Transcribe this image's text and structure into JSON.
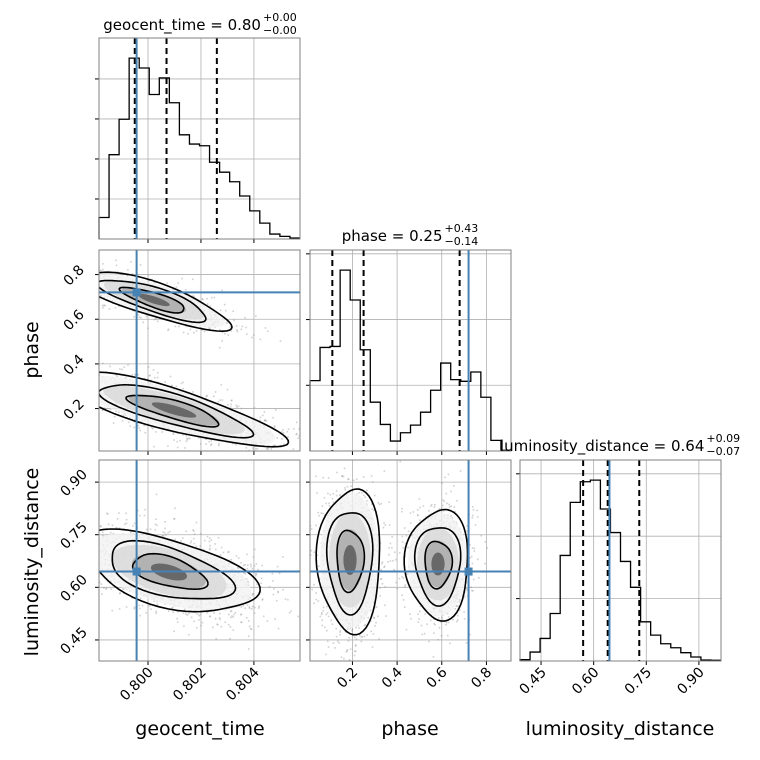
{
  "chart_data": {
    "type": "corner",
    "parameters": [
      "geocent_time",
      "phase",
      "luminosity_distance"
    ],
    "axis_labels": [
      "geocent_time",
      "phase",
      "luminosity_distance"
    ],
    "ranges": {
      "geocent_time": [
        0.79815,
        0.80574
      ],
      "phase": [
        0.01,
        0.91
      ],
      "luminosity_distance": [
        0.39,
        0.963
      ]
    },
    "ticks": {
      "geocent_time": [
        "0.800",
        "0.802",
        "0.804"
      ],
      "phase": [
        "0.2",
        "0.4",
        "0.6",
        "0.8"
      ],
      "luminosity_distance": [
        "0.45",
        "0.60",
        "0.75",
        "0.90"
      ]
    },
    "titles": [
      {
        "name": "geocent_time",
        "median": "0.80",
        "plus": "+0.00",
        "minus": "−0.00"
      },
      {
        "name": "phase",
        "median": "0.25",
        "plus": "+0.43",
        "minus": "−0.14"
      },
      {
        "name": "luminosity_distance",
        "median": "0.64",
        "plus": "+0.09",
        "minus": "−0.07"
      }
    ],
    "quantiles": {
      "geocent_time": [
        0.7995,
        0.8007,
        0.8026
      ],
      "phase": [
        0.11,
        0.25,
        0.68
      ],
      "luminosity_distance": [
        0.57,
        0.64,
        0.73
      ]
    },
    "truths": {
      "geocent_time": 0.79957,
      "phase": 0.72,
      "luminosity_distance": 0.645
    },
    "histograms": {
      "geocent_time": {
        "counts": [
          65,
          255,
          362,
          547,
          517,
          437,
          487,
          412,
          315,
          287,
          282,
          232,
          202,
          173,
          130,
          85,
          48,
          15,
          8,
          3
        ],
        "yticks": [
          121,
          242,
          363,
          484
        ]
      },
      "phase": {
        "counts": [
          212,
          312,
          315,
          545,
          455,
          305,
          147,
          80,
          30,
          55,
          78,
          117,
          183,
          265,
          215,
          210,
          238,
          162,
          32,
          2
        ],
        "yticks": [
          198,
          396,
          594
        ]
      },
      "luminosity_distance": {
        "counts": [
          4,
          27,
          68,
          143,
          318,
          478,
          540,
          545,
          458,
          387,
          300,
          222,
          118,
          78,
          52,
          40,
          25,
          12,
          3,
          2
        ],
        "yticks": [
          188,
          376,
          564
        ]
      }
    },
    "grid": true,
    "colors": {
      "truth": "#4682b4",
      "hist": "#000000",
      "points": "#9a9a9a",
      "grid": "#b0b0b0"
    }
  }
}
